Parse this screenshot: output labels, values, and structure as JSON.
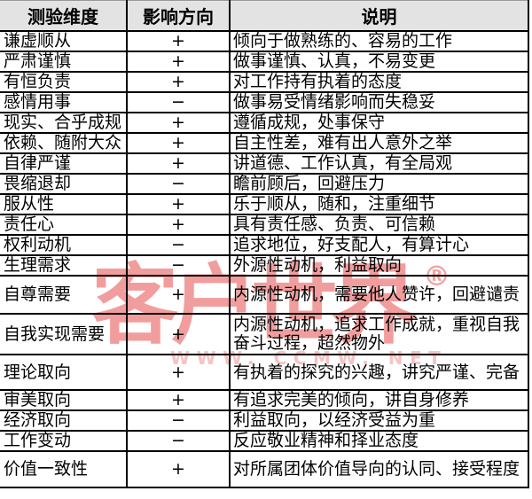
{
  "watermark": {
    "brand": "客户世界",
    "registered": "®",
    "url": "WWW. CCMW. NET",
    "brand_color": "#F29D9D",
    "url_color": "#F8C3C3"
  },
  "table": {
    "headers": [
      "测验维度",
      "影响方向",
      "说明"
    ],
    "header_bg": "#E3E3E3",
    "border_color": "#000000",
    "rows": [
      {
        "dimension": "谦虚顺从",
        "direction": "+",
        "description": "倾向于做熟练的、容易的工作"
      },
      {
        "dimension": "严肃谨慎",
        "direction": "+",
        "description": "做事谨慎、认真，不易变更"
      },
      {
        "dimension": "有恒负责",
        "direction": "+",
        "description": "对工作持有执着的态度"
      },
      {
        "dimension": "感情用事",
        "direction": "−",
        "description": "做事易受情绪影响而失稳妥"
      },
      {
        "dimension": "现实、合乎成规",
        "direction": "+",
        "description": "遵循成规，处事保守"
      },
      {
        "dimension": "依赖、随附大众",
        "direction": "+",
        "description": "自主性差，难有出人意外之举"
      },
      {
        "dimension": "自律严谨",
        "direction": "+",
        "description": "讲道德、工作认真，有全局观"
      },
      {
        "dimension": "畏缩退却",
        "direction": "−",
        "description": "瞻前顾后，回避压力"
      },
      {
        "dimension": "服从性",
        "direction": "+",
        "description": "乐于顺从，随和，注重细节"
      },
      {
        "dimension": "责任心",
        "direction": "+",
        "description": "具有责任感、负责、可信赖"
      },
      {
        "dimension": "权利动机",
        "direction": "−",
        "description": "追求地位，好支配人，有算计心"
      },
      {
        "dimension": "生理需求",
        "direction": "−",
        "description": "外源性动机，利益取向"
      },
      {
        "dimension": "自尊需要",
        "direction": "+",
        "description": "内源性动机，需要他人赞许，回避谴责"
      },
      {
        "dimension": "自我实现需要",
        "direction": "+",
        "description": "内源性动机，追求工作成就，重视自我奋斗过程，超然物外"
      },
      {
        "dimension": "理论取向",
        "direction": "+",
        "description": "有执着的探究的兴趣，讲究严谨、完备"
      },
      {
        "dimension": "审美取向",
        "direction": "+",
        "description": "有追求完美的倾向，讲自身修养"
      },
      {
        "dimension": "经济取向",
        "direction": "−",
        "description": "利益取向，以经济受益为重"
      },
      {
        "dimension": "工作变动",
        "direction": "−",
        "description": "反应敬业精神和择业态度"
      },
      {
        "dimension": "价值一致性",
        "direction": "+",
        "description": "对所属团体价值导向的认同、接受程度"
      }
    ]
  }
}
